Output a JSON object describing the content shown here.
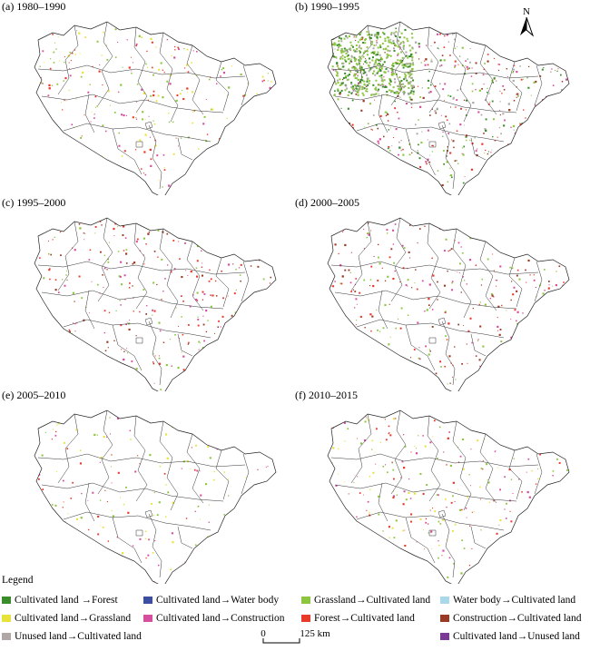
{
  "panels": [
    {
      "label": "(a) 1980–1990",
      "density": 0.55,
      "classes": [
        "grassland_to_cultivated",
        "forest_to_cultivated",
        "cultivated_to_construction",
        "cultivated_to_grassland"
      ]
    },
    {
      "label": "(b) 1990–1995",
      "density": 1.0,
      "classes": [
        "grassland_to_cultivated",
        "cultivated_to_forest",
        "cultivated_to_construction",
        "forest_to_cultivated",
        "unused_to_cultivated",
        "construction_to_cultivated"
      ]
    },
    {
      "label": "(c) 1995–2000",
      "density": 0.55,
      "classes": [
        "forest_to_cultivated",
        "grassland_to_cultivated",
        "construction_to_cultivated",
        "cultivated_to_construction"
      ]
    },
    {
      "label": "(d) 2000–2005",
      "density": 0.55,
      "classes": [
        "cultivated_to_construction",
        "construction_to_cultivated",
        "forest_to_cultivated",
        "grassland_to_cultivated"
      ]
    },
    {
      "label": "(e) 2005–2010",
      "density": 0.3,
      "classes": [
        "cultivated_to_construction",
        "cultivated_to_grassland",
        "grassland_to_cultivated",
        "forest_to_cultivated"
      ]
    },
    {
      "label": "(f) 2010–2015",
      "density": 0.5,
      "classes": [
        "cultivated_to_construction",
        "grassland_to_cultivated",
        "cultivated_to_grassland",
        "forest_to_cultivated"
      ]
    }
  ],
  "legend": {
    "title": "Legend",
    "items": [
      {
        "key": "cultivated_to_forest",
        "label": "Cultivated land →Forest",
        "color": "#3a8c2a"
      },
      {
        "key": "cultivated_to_water",
        "label": "Cultivated land→Water body",
        "color": "#3b4ea0"
      },
      {
        "key": "grassland_to_cultivated",
        "label": "Grassland→Cultivated land",
        "color": "#8cc63e"
      },
      {
        "key": "water_to_cultivated",
        "label": "Water body→Cultivated land",
        "color": "#a8d8ea"
      },
      {
        "key": "cultivated_to_grassland",
        "label": "Cultivated land→Grassland",
        "color": "#e8e33a"
      },
      {
        "key": "cultivated_to_construction",
        "label": "Cultivated land→Construction",
        "color": "#d64f9e"
      },
      {
        "key": "forest_to_cultivated",
        "label": "Forest→Cultivated land",
        "color": "#e8392b"
      },
      {
        "key": "construction_to_cultivated",
        "label": "Construction→Cultivated land",
        "color": "#9a3a24"
      },
      {
        "key": "unused_to_cultivated",
        "label": "Unused land→Cultivated land",
        "color": "#b0a8a6"
      },
      {
        "key": "cultivated_to_unused",
        "label": "Cultivated land→Unused land",
        "color": "#7b3a96"
      }
    ]
  },
  "scale": {
    "zero": "0",
    "distance": "125 km"
  },
  "north_label": "N"
}
